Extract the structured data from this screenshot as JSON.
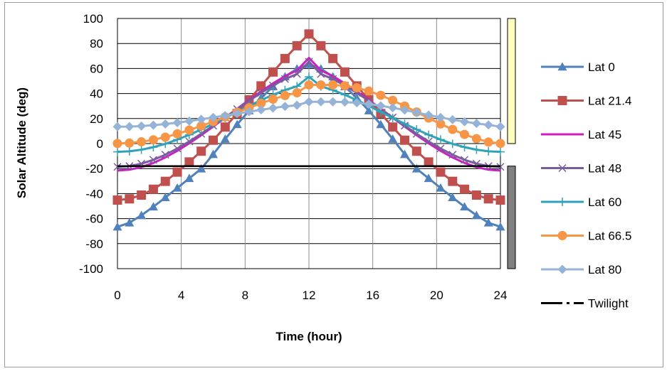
{
  "chart_data": {
    "type": "line",
    "title": "",
    "xlabel": "Time (hour)",
    "ylabel": "Solar Altitude (deg)",
    "xlim": [
      0,
      24
    ],
    "ylim": [
      -100,
      100
    ],
    "x_ticks": [
      "0",
      "4",
      "8",
      "12",
      "16",
      "20",
      "24"
    ],
    "y_ticks": [
      "100",
      "80",
      "60",
      "40",
      "20",
      "0",
      "-20",
      "-40",
      "-60",
      "-80",
      "-100"
    ],
    "grid": true,
    "legend_position": "right",
    "x": [
      0,
      0.75,
      1.5,
      2.25,
      3,
      3.75,
      4.5,
      5.25,
      6,
      6.75,
      7.5,
      8.25,
      9,
      9.75,
      10.5,
      11.25,
      12,
      12.75,
      13.5,
      14.25,
      15,
      15.75,
      16.5,
      17.25,
      18,
      18.75,
      19.5,
      20.25,
      21,
      21.75,
      22.5,
      23.25,
      24
    ],
    "series": [
      {
        "name": "Lat 0",
        "color": "#4f81bd",
        "marker": "triangle",
        "values": [
          -66.6,
          -63.3,
          -57.4,
          -50.5,
          -43.1,
          -35.5,
          -27.8,
          -20.1,
          -8.6,
          3.6,
          15.3,
          26.3,
          36.4,
          45.6,
          53.5,
          59.8,
          63.4,
          59.8,
          53.5,
          45.6,
          36.4,
          26.3,
          15.3,
          3.6,
          -8.6,
          -20.1,
          -27.8,
          -35.5,
          -43.1,
          -50.5,
          -57.4,
          -63.3,
          -66.6
        ]
      },
      {
        "name": "Lat 21.4",
        "color": "#c0504d",
        "marker": "square",
        "values": [
          -45.2,
          -44.2,
          -41.2,
          -36.5,
          -30.2,
          -22.8,
          -14.7,
          -6.1,
          2.7,
          13.2,
          24.0,
          35.0,
          46.1,
          57.2,
          68.0,
          78.2,
          87.6,
          78.2,
          68.0,
          57.2,
          46.1,
          35.0,
          24.0,
          13.2,
          2.7,
          -6.1,
          -14.7,
          -22.8,
          -30.2,
          -36.5,
          -41.2,
          -44.2,
          -45.2
        ]
      },
      {
        "name": "Lat 45",
        "color": "#cc1fbf",
        "marker": "none",
        "values": [
          -21.6,
          -20.9,
          -18.8,
          -15.5,
          -11.1,
          -5.8,
          0.2,
          6.7,
          13.6,
          20.7,
          27.8,
          34.9,
          41.7,
          48.1,
          53.9,
          58.5,
          68.4,
          58.5,
          53.9,
          48.1,
          41.7,
          34.9,
          27.8,
          20.7,
          13.6,
          6.7,
          0.2,
          -5.8,
          -11.1,
          -15.5,
          -18.8,
          -20.9,
          -21.6
        ]
      },
      {
        "name": "Lat 48",
        "color": "#7a5c9e",
        "marker": "x",
        "values": [
          -18.6,
          -18.0,
          -16.1,
          -13.0,
          -8.9,
          -3.9,
          1.7,
          7.8,
          14.3,
          20.9,
          27.6,
          34.2,
          40.5,
          46.4,
          51.6,
          55.6,
          65.4,
          55.6,
          51.6,
          46.4,
          40.5,
          34.2,
          27.6,
          20.9,
          14.3,
          7.8,
          1.7,
          -3.9,
          -8.9,
          -13.0,
          -16.1,
          -18.0,
          -18.6
        ]
      },
      {
        "name": "Lat 60",
        "color": "#31a2b8",
        "marker": "plus",
        "values": [
          -6.6,
          -6.2,
          -4.9,
          -2.9,
          -0.2,
          3.2,
          7.0,
          11.3,
          15.8,
          20.5,
          25.3,
          30.1,
          34.7,
          39.0,
          42.8,
          45.8,
          53.4,
          45.8,
          42.8,
          39.0,
          34.7,
          30.1,
          25.3,
          20.5,
          15.8,
          11.3,
          7.0,
          3.2,
          -0.2,
          -2.9,
          -4.9,
          -6.2,
          -6.6
        ]
      },
      {
        "name": "Lat 66.5",
        "color": "#f79646",
        "marker": "circle",
        "values": [
          0.1,
          0.4,
          1.4,
          3.0,
          5.1,
          7.8,
          10.8,
          14.1,
          17.6,
          21.3,
          25.0,
          28.6,
          32.2,
          35.5,
          38.4,
          40.6,
          46.9,
          46.9,
          46.9,
          46.2,
          44.6,
          42.0,
          38.6,
          34.5,
          30.0,
          25.2,
          20.4,
          15.7,
          11.3,
          7.3,
          3.9,
          1.2,
          0.1
        ]
      },
      {
        "name": "Lat 80",
        "color": "#95b3d7",
        "marker": "diamond",
        "values": [
          13.5,
          13.6,
          14.0,
          14.7,
          15.6,
          16.7,
          18.0,
          19.4,
          20.9,
          22.4,
          24.0,
          25.5,
          27.0,
          28.4,
          29.7,
          30.7,
          33.4,
          33.4,
          33.4,
          33.2,
          32.6,
          31.6,
          30.2,
          28.6,
          26.8,
          24.8,
          22.8,
          20.9,
          19.1,
          17.5,
          16.1,
          14.9,
          13.5
        ]
      },
      {
        "name": "Twilight",
        "color": "#000000",
        "marker": "none",
        "dash": true,
        "values": [
          -18,
          -18,
          -18,
          -18,
          -18,
          -18,
          -18,
          -18,
          -18,
          -18,
          -18,
          -18,
          -18,
          -18,
          -18,
          -18,
          -18,
          -18,
          -18,
          -18,
          -18,
          -18,
          -18,
          -18,
          -18,
          -18,
          -18,
          -18,
          -18,
          -18,
          -18,
          -18,
          -18
        ]
      }
    ],
    "side_bars": [
      {
        "name": "daylight-band",
        "range": [
          0,
          100
        ],
        "color": "#ffffc0"
      },
      {
        "name": "night-band",
        "range": [
          -100,
          -18
        ],
        "color": "#808080"
      }
    ]
  }
}
